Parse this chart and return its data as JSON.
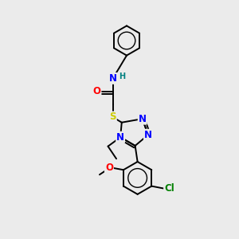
{
  "bg_color": "#ebebeb",
  "atom_colors": {
    "N": "#0000ff",
    "O": "#ff0000",
    "S": "#cccc00",
    "Cl": "#008000",
    "H": "#008080",
    "C": "#000000"
  },
  "lw": 1.4,
  "fs": 8.5,
  "fs_small": 7.0
}
